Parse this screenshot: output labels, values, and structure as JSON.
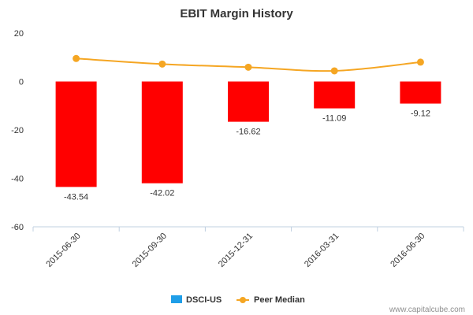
{
  "chart_data": {
    "type": "bar",
    "title": "EBIT Margin History",
    "categories": [
      "2015-06-30",
      "2015-09-30",
      "2015-12-31",
      "2016-03-31",
      "2016-06-30"
    ],
    "ylim": [
      -60,
      20
    ],
    "yticks": [
      20,
      0,
      -20,
      -40,
      -60
    ],
    "grid": false,
    "legend_position": "bottom-center",
    "series": [
      {
        "name": "DSCI-US",
        "type": "bar",
        "legend_color": "#1f9ee8",
        "bar_color": "#ff0000",
        "values": [
          -43.54,
          -42.02,
          -16.62,
          -11.09,
          -9.12
        ],
        "labels": [
          "-43.54",
          "-42.02",
          "-16.62",
          "-11.09",
          "-9.12"
        ]
      },
      {
        "name": "Peer Median",
        "type": "line",
        "color": "#f5a623",
        "values": [
          9.5,
          7.2,
          5.9,
          4.4,
          8.0
        ]
      }
    ],
    "credit": "www.capitalcube.com"
  }
}
